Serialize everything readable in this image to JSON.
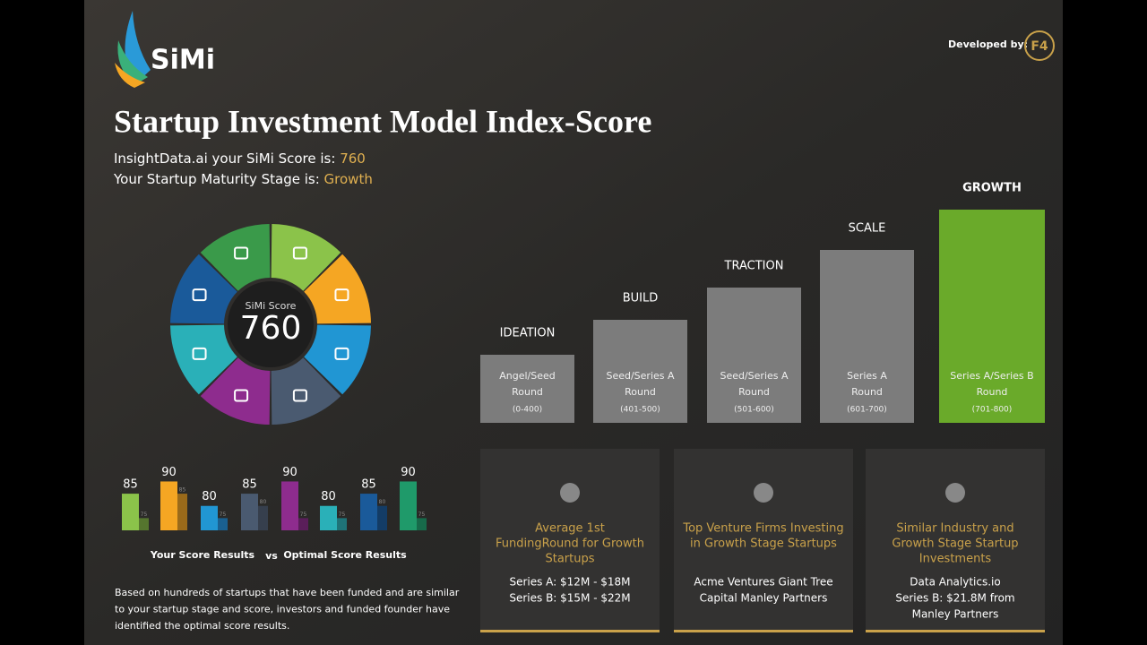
{
  "header": {
    "brand": "SiMi",
    "developed_by": "Developed by:",
    "developer_logo": "F4"
  },
  "title": "Startup Investment Model Index-Score",
  "summary": {
    "score_prefix": "InsightData.ai your SiMi Score is: ",
    "score": 760,
    "stage_prefix": "Your Startup Maturity Stage is: ",
    "stage": "Growth"
  },
  "score_wheel": {
    "label": "SiMi Score",
    "score": 760,
    "segment_colors": [
      "#8bc34a",
      "#f5a623",
      "#2196d3",
      "#4a5a70",
      "#8e2c8e",
      "#2ab0b8",
      "#1a5a9a",
      "#3a9a4a"
    ]
  },
  "stages": [
    {
      "name": "IDEATION",
      "round": [
        "Angel/Seed",
        "Round"
      ],
      "range": "(0-400)"
    },
    {
      "name": "BUILD",
      "round": [
        "Seed/Series A",
        "Round"
      ],
      "range": "(401-500)"
    },
    {
      "name": "TRACTION",
      "round": [
        "Seed/Series A",
        "Round"
      ],
      "range": "(501-600)"
    },
    {
      "name": "SCALE",
      "round": [
        "Series A",
        "Round"
      ],
      "range": "(601-700)"
    },
    {
      "name": "GROWTH",
      "round": [
        "Series A/Series B",
        "Round"
      ],
      "range": "(701-800)",
      "highlight": true
    }
  ],
  "cards": [
    {
      "title": [
        "Average 1st",
        "FundingRound for Growth",
        "Startups"
      ],
      "body": [
        "Series A: $12M - $18M",
        "Series B: $15M - $22M"
      ]
    },
    {
      "title": [
        "Top Venture Firms Investing",
        "in Growth Stage Startups"
      ],
      "body": [
        "Acme Ventures Giant Tree",
        "Capital Manley Partners"
      ]
    },
    {
      "title": [
        "Similar Industry and",
        "Growth Stage Startup",
        "Investments"
      ],
      "body": [
        "Data Analytics.io",
        "Series B: $21.8M from",
        "Manley Partners"
      ]
    }
  ],
  "chart_data": {
    "type": "bar",
    "categories": [
      null,
      null,
      null,
      null,
      null,
      null,
      null,
      null
    ],
    "ylim": [
      70,
      92
    ],
    "series": [
      {
        "name": "Your Score Results",
        "colors": [
          "#8bc34a",
          "#f5a623",
          "#2196d3",
          "#4a5a70",
          "#8e2c8e",
          "#2ab0b8",
          "#1a5a9a",
          "#1f9a6a"
        ],
        "values": [
          85,
          90,
          80,
          85,
          90,
          80,
          85,
          90
        ]
      },
      {
        "name": "Optimal Score Results",
        "colors": [
          "#55752e",
          "#9a6a1a",
          "#1a6090",
          "#363f4d",
          "#5a1e5a",
          "#1f7378",
          "#133c66",
          "#176a4a"
        ],
        "values": [
          75,
          85,
          75,
          80,
          75,
          75,
          80,
          75
        ]
      }
    ],
    "legend_separator": "vs"
  },
  "footnote": [
    "Based on hundreds of startups that have been funded and are similar",
    "to  your startup stage and score, investors and funded founder have",
    "identified the optimal score results."
  ]
}
